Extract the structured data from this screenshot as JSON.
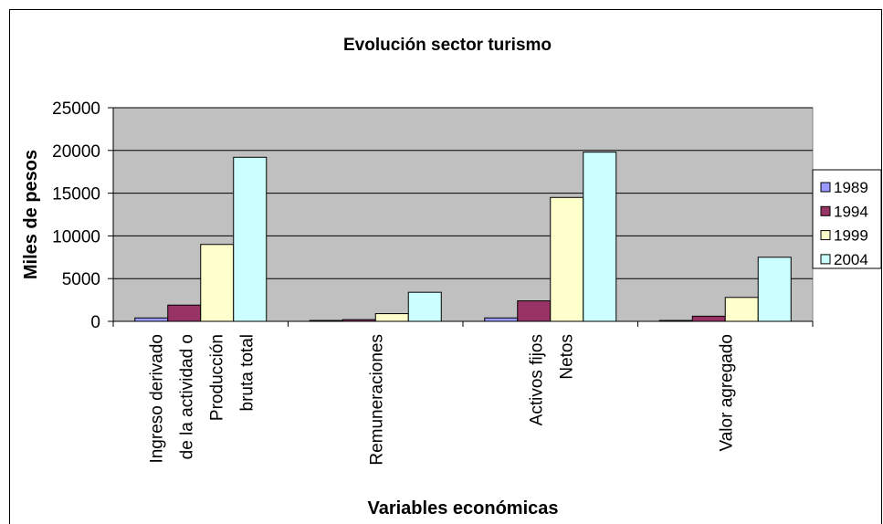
{
  "chart_data": {
    "type": "bar",
    "title": "Evolución sector turismo",
    "xlabel": "Variables económicas",
    "ylabel": "Miles de pesos",
    "categories": [
      "Ingreso derivado\nde la actividad o\nProducción\nbruta total",
      "Remuneraciones",
      "Activos fijos\nNetos",
      "Valor agregado"
    ],
    "series": [
      {
        "name": "1989",
        "color": "#9999ff",
        "values": [
          400,
          100,
          400,
          100
        ]
      },
      {
        "name": "1994",
        "color": "#993366",
        "values": [
          1900,
          200,
          2400,
          600
        ]
      },
      {
        "name": "1999",
        "color": "#ffffcc",
        "values": [
          9000,
          900,
          14500,
          2800
        ]
      },
      {
        "name": "2004",
        "color": "#ccffff",
        "values": [
          19200,
          3400,
          19800,
          7500
        ]
      }
    ],
    "ylim": [
      0,
      25000
    ],
    "yticks": [
      0,
      5000,
      10000,
      15000,
      20000,
      25000
    ],
    "grid": true,
    "legend": "right"
  }
}
